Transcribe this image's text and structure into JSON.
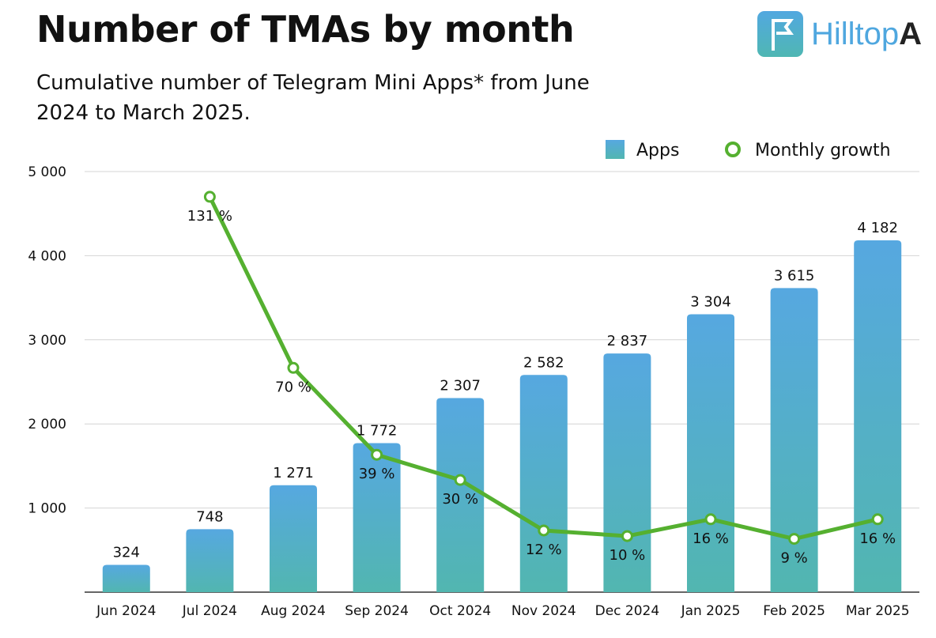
{
  "title": "Number of TMAs by month",
  "subtitle": "Cumulative number of Telegram Mini Apps* from June 2024 to March 2025.",
  "logo": {
    "text": "HilltopA",
    "colors": {
      "accent": "#4fa7df",
      "dark": "#222222"
    }
  },
  "chart_data": {
    "type": "bar",
    "title": "Number of TMAs by month",
    "categories": [
      "Jun 2024",
      "Jul 2024",
      "Aug 2024",
      "Sep 2024",
      "Oct 2024",
      "Nov 2024",
      "Dec 2024",
      "Jan 2025",
      "Feb 2025",
      "Mar 2025"
    ],
    "series": [
      {
        "name": "Apps",
        "type": "bar",
        "values": [
          324,
          748,
          1271,
          1772,
          2307,
          2582,
          2837,
          3304,
          3615,
          4182
        ],
        "labels": [
          "324",
          "748",
          "1 271",
          "1 772",
          "2 307",
          "2 582",
          "2 837",
          "3 304",
          "3 615",
          "4 182"
        ],
        "color_top": "#56a8e0",
        "color_bottom": "#52b6b0"
      },
      {
        "name": "Monthly growth",
        "type": "line",
        "values": [
          null,
          131,
          70,
          39,
          30,
          12,
          10,
          16,
          9,
          16
        ],
        "labels": [
          "",
          "131 %",
          "70 %",
          "39 %",
          "30 %",
          "12 %",
          "10 %",
          "16 %",
          "9 %",
          "16 %"
        ],
        "color": "#55b030",
        "axis": "secondary"
      }
    ],
    "yticks": [
      "1 000",
      "2 000",
      "3 000",
      "4 000",
      "5 000"
    ],
    "ytick_values": [
      1000,
      2000,
      3000,
      4000,
      5000
    ],
    "ylim": [
      0,
      5000
    ],
    "y2lim": [
      -10,
      140
    ],
    "grid": true,
    "legend": "top-right"
  }
}
